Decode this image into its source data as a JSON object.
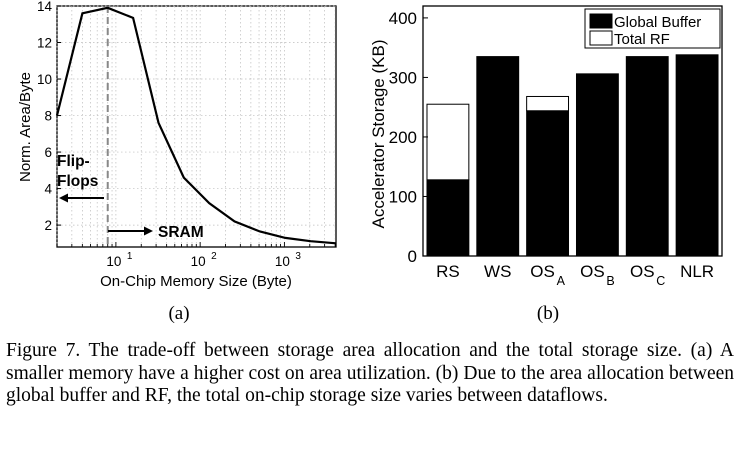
{
  "chart_data": [
    {
      "type": "line",
      "panel_label": "(a)",
      "xscale": "log",
      "xlabel": "On-Chip Memory Size (Byte)",
      "ylabel": "Norm. Area/Byte",
      "xlim": [
        2,
        4096
      ],
      "ylim": [
        0.8,
        14
      ],
      "yticks": [
        2,
        4,
        6,
        8,
        10,
        12,
        14
      ],
      "xticks": [
        {
          "value": 10,
          "base": "10",
          "exp": "1"
        },
        {
          "value": 100,
          "base": "10",
          "exp": "2"
        },
        {
          "value": 1000,
          "base": "10",
          "exp": "3"
        }
      ],
      "grid": true,
      "x": [
        2,
        4,
        8,
        16,
        32,
        64,
        128,
        256,
        512,
        1024,
        2048,
        4096
      ],
      "y": [
        8.0,
        13.6,
        13.9,
        13.35,
        7.6,
        4.6,
        3.2,
        2.2,
        1.65,
        1.3,
        1.12,
        1.0
      ],
      "divider_x": 8,
      "annotations": {
        "left_line1": "Flip-",
        "left_line2": "Flops",
        "right": "SRAM"
      }
    },
    {
      "type": "stacked_bar",
      "panel_label": "(b)",
      "ylabel": "Accelerator Storage (KB)",
      "ylim": [
        0,
        420
      ],
      "yticks": [
        0,
        100,
        200,
        300,
        400
      ],
      "categories": [
        {
          "name": "RS",
          "sub": ""
        },
        {
          "name": "WS",
          "sub": ""
        },
        {
          "name": "OS",
          "sub": "A"
        },
        {
          "name": "OS",
          "sub": "B"
        },
        {
          "name": "OS",
          "sub": "C"
        },
        {
          "name": "NLR",
          "sub": ""
        }
      ],
      "series": [
        {
          "name": "Global Buffer",
          "color": "#000000",
          "values": [
            128,
            335,
            244,
            306,
            335,
            338
          ]
        },
        {
          "name": "Total RF",
          "color": "#ffffff",
          "values": [
            127,
            0,
            24,
            0,
            0,
            0
          ]
        }
      ],
      "legend": "top-right"
    }
  ],
  "caption": "Figure 7.   The trade-off between storage area allocation and the total storage size. (a) A smaller memory have a higher cost on area utilization. (b) Due to the area allocation between global buffer and RF, the total on-chip storage size varies between dataflows."
}
